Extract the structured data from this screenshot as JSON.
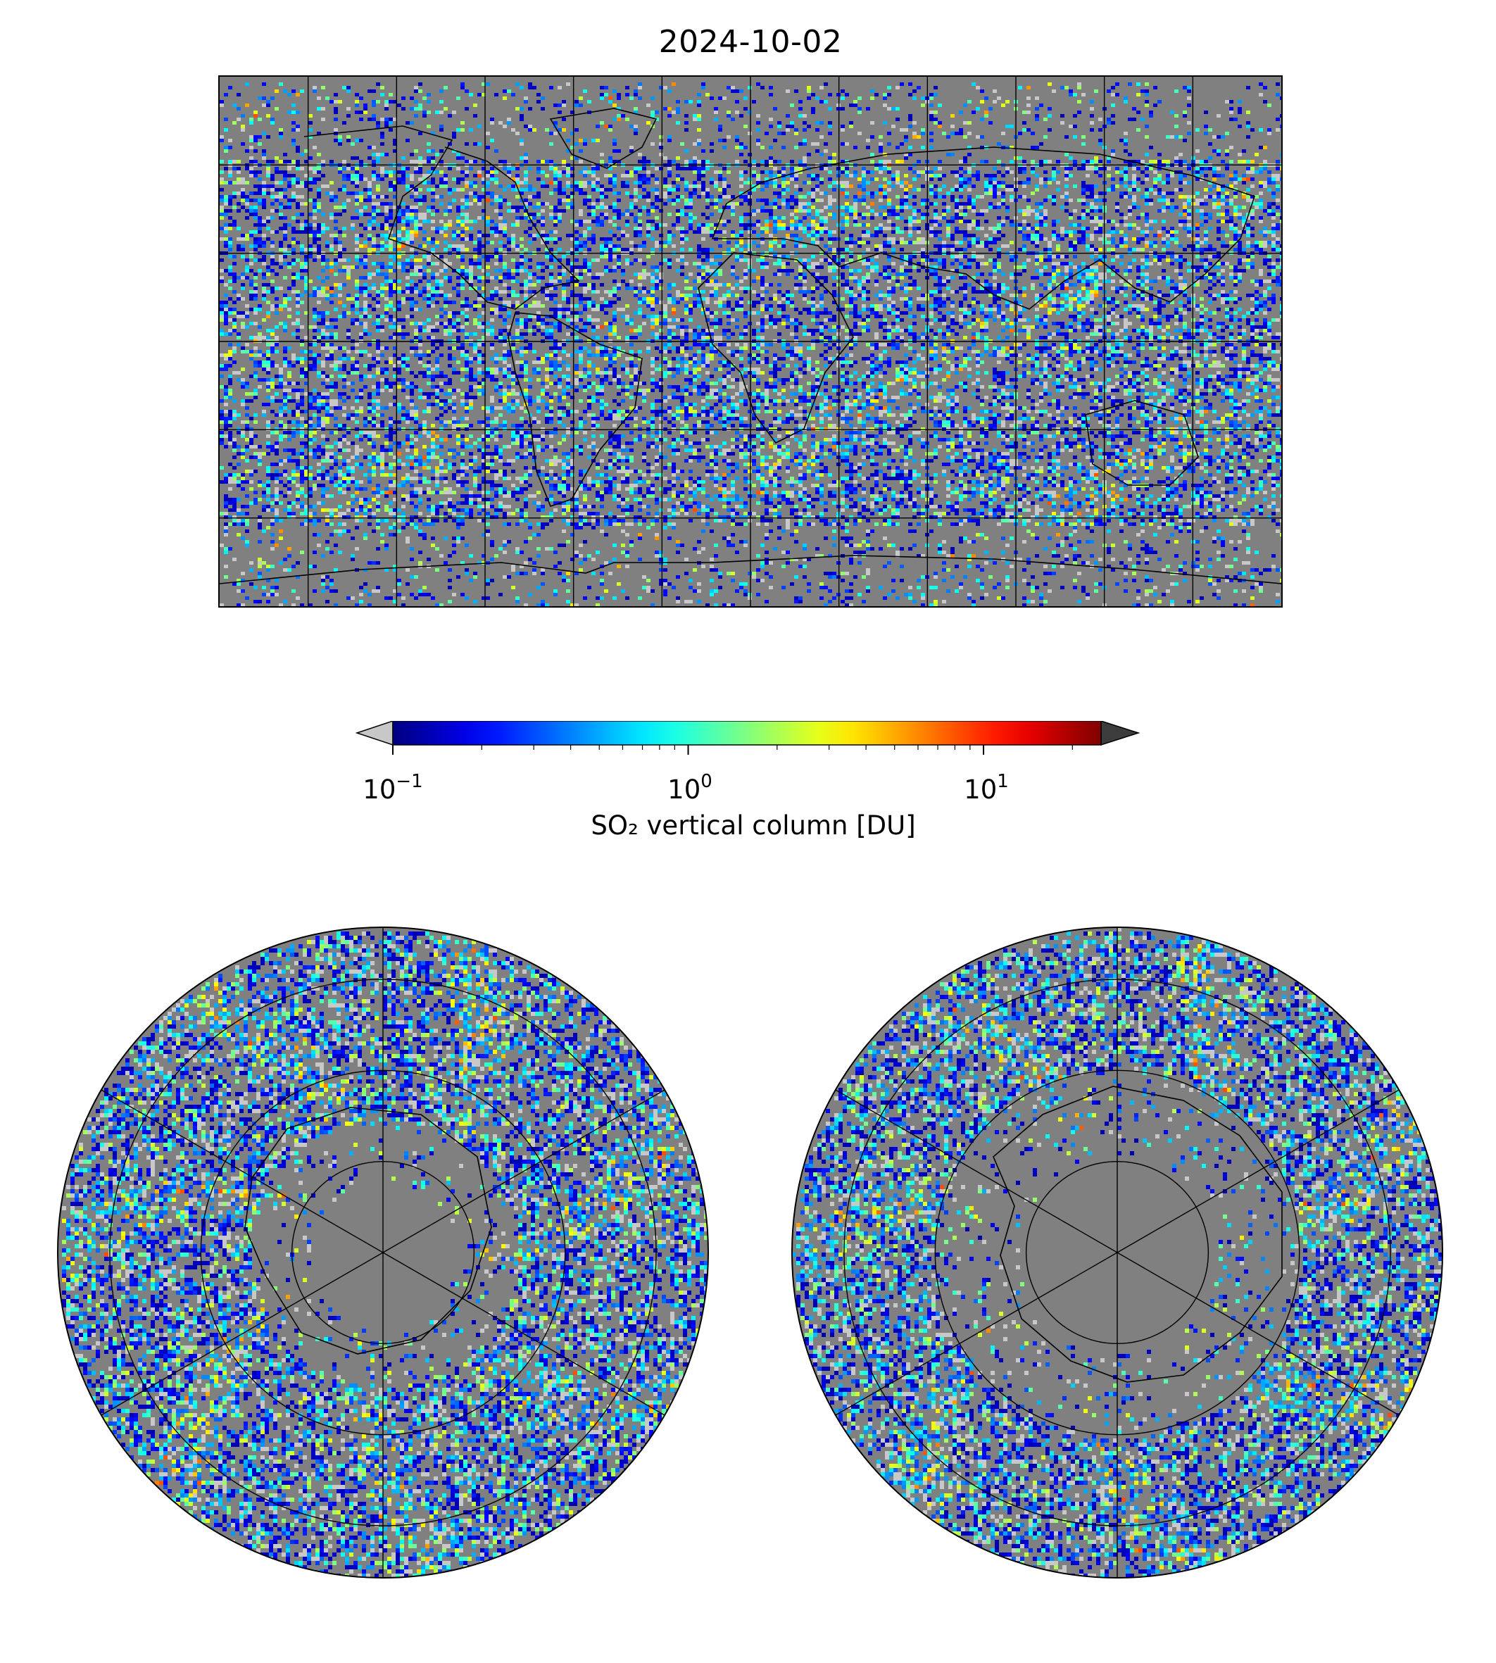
{
  "title": "2024-10-02",
  "colorbar": {
    "label": "SO₂ vertical column [DU]",
    "scale": "log",
    "min": 0.1,
    "max": 25,
    "ticks": [
      {
        "value": 0.1,
        "base": "10",
        "exp": "−1"
      },
      {
        "value": 1,
        "base": "10",
        "exp": "0"
      },
      {
        "value": 10,
        "base": "10",
        "exp": "1"
      }
    ],
    "colormap": "jet",
    "under_color": "#c8c8c8",
    "over_color": "#3c3c3c",
    "missing_color": "#808080"
  },
  "maps": {
    "global": {
      "projection": "plate-carree",
      "gridlines": true
    },
    "north_polar": {
      "projection": "north-polar-stereographic",
      "gridlines": true
    },
    "south_polar": {
      "projection": "south-polar-stereographic",
      "gridlines": true
    }
  }
}
